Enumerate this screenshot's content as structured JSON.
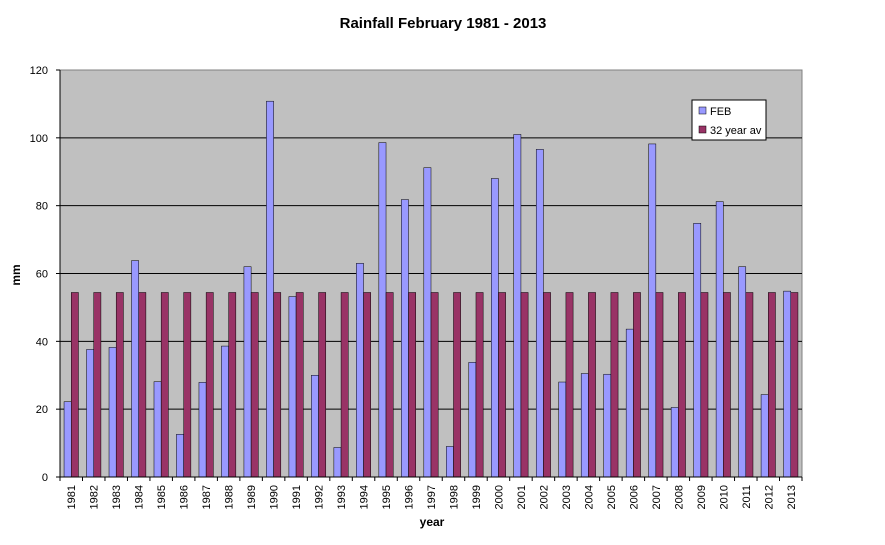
{
  "chart_data": {
    "type": "bar",
    "title": "Rainfall February 1981 - 2013",
    "xlabel": "year",
    "ylabel": "mm",
    "ylim": [
      0,
      120
    ],
    "yticks": [
      0,
      20,
      40,
      60,
      80,
      100,
      120
    ],
    "grid": true,
    "legend_position": "top-right",
    "categories": [
      "1981",
      "1982",
      "1983",
      "1984",
      "1985",
      "1986",
      "1987",
      "1988",
      "1989",
      "1990",
      "1991",
      "1992",
      "1993",
      "1994",
      "1995",
      "1996",
      "1997",
      "1998",
      "1999",
      "2000",
      "2001",
      "2002",
      "2003",
      "2004",
      "2005",
      "2006",
      "2007",
      "2008",
      "2009",
      "2010",
      "2011",
      "2012",
      "2013"
    ],
    "series": [
      {
        "name": "FEB",
        "color": "#9999ff",
        "values": [
          22.2,
          37.6,
          38.2,
          63.8,
          28.1,
          12.6,
          27.9,
          38.6,
          62.0,
          110.8,
          53.2,
          30.0,
          8.7,
          63.0,
          98.6,
          81.8,
          91.2,
          9.0,
          33.8,
          88.0,
          101.0,
          96.6,
          28.0,
          30.5,
          30.3,
          43.6,
          98.2,
          20.5,
          74.8,
          81.2,
          62.0,
          24.3,
          54.8
        ]
      },
      {
        "name": "32 year av",
        "color": "#993366",
        "values": [
          54.4,
          54.4,
          54.4,
          54.4,
          54.4,
          54.4,
          54.4,
          54.4,
          54.4,
          54.4,
          54.4,
          54.4,
          54.4,
          54.4,
          54.4,
          54.4,
          54.4,
          54.4,
          54.4,
          54.4,
          54.4,
          54.4,
          54.4,
          54.4,
          54.4,
          54.4,
          54.4,
          54.4,
          54.4,
          54.4,
          54.4,
          54.4,
          54.4
        ]
      }
    ],
    "plot_background": "#c0c0c0"
  }
}
